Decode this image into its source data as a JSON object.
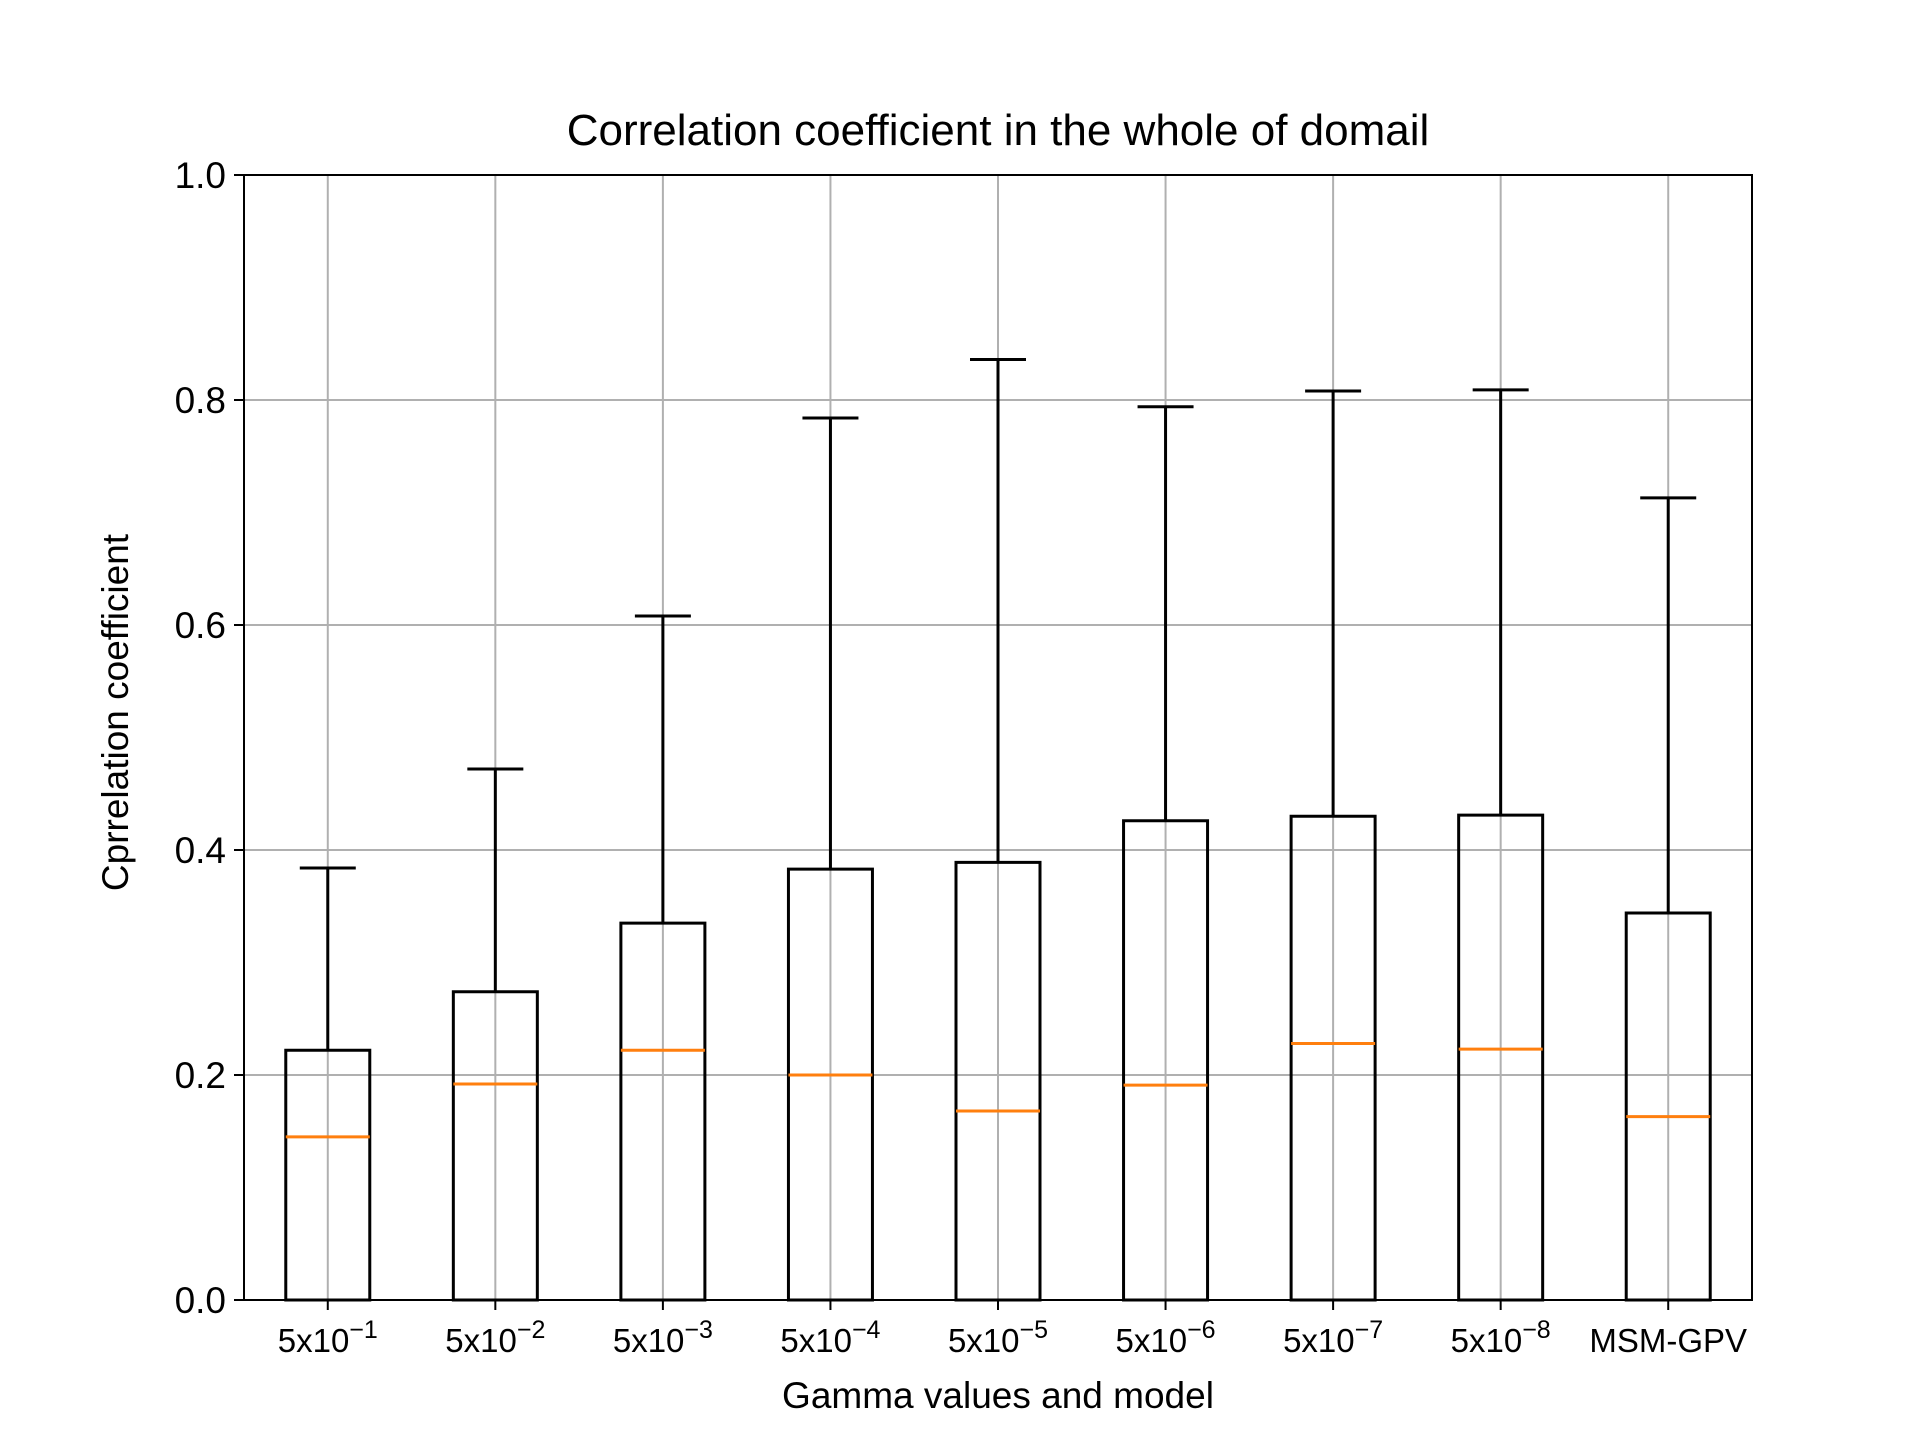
{
  "chart_data": {
    "type": "box",
    "title": "Correlation coefficient in the whole of domail",
    "xlabel": "Gamma values and model",
    "ylabel": "Cprrelation coefficient",
    "ylim": [
      0,
      1.0
    ],
    "yticks": [
      "0.0",
      "0.2",
      "0.4",
      "0.6",
      "0.8",
      "1.0"
    ],
    "grid": true,
    "categories": [
      {
        "base": "5x10",
        "exp": "−1"
      },
      {
        "base": "5x10",
        "exp": "−2"
      },
      {
        "base": "5x10",
        "exp": "−3"
      },
      {
        "base": "5x10",
        "exp": "−4"
      },
      {
        "base": "5x10",
        "exp": "−5"
      },
      {
        "base": "5x10",
        "exp": "−6"
      },
      {
        "base": "5x10",
        "exp": "−7"
      },
      {
        "base": "5x10",
        "exp": "−8"
      },
      {
        "base": "MSM-GPV",
        "exp": ""
      }
    ],
    "boxes": [
      {
        "whisker_low": 0.0,
        "q1": 0.0,
        "median": 0.145,
        "q3": 0.222,
        "whisker_high": 0.384
      },
      {
        "whisker_low": 0.0,
        "q1": 0.0,
        "median": 0.192,
        "q3": 0.274,
        "whisker_high": 0.472
      },
      {
        "whisker_low": 0.0,
        "q1": 0.0,
        "median": 0.222,
        "q3": 0.335,
        "whisker_high": 0.608
      },
      {
        "whisker_low": 0.0,
        "q1": 0.0,
        "median": 0.2,
        "q3": 0.383,
        "whisker_high": 0.784
      },
      {
        "whisker_low": 0.0,
        "q1": 0.0,
        "median": 0.168,
        "q3": 0.389,
        "whisker_high": 0.836
      },
      {
        "whisker_low": 0.0,
        "q1": 0.0,
        "median": 0.191,
        "q3": 0.426,
        "whisker_high": 0.794
      },
      {
        "whisker_low": 0.0,
        "q1": 0.0,
        "median": 0.228,
        "q3": 0.43,
        "whisker_high": 0.808
      },
      {
        "whisker_low": 0.0,
        "q1": 0.0,
        "median": 0.223,
        "q3": 0.431,
        "whisker_high": 0.809
      },
      {
        "whisker_low": 0.0,
        "q1": 0.0,
        "median": 0.163,
        "q3": 0.344,
        "whisker_high": 0.713
      }
    ],
    "colors": {
      "box": "#000000",
      "median": "#ff7f0e",
      "grid": "#b0b0b0"
    }
  }
}
